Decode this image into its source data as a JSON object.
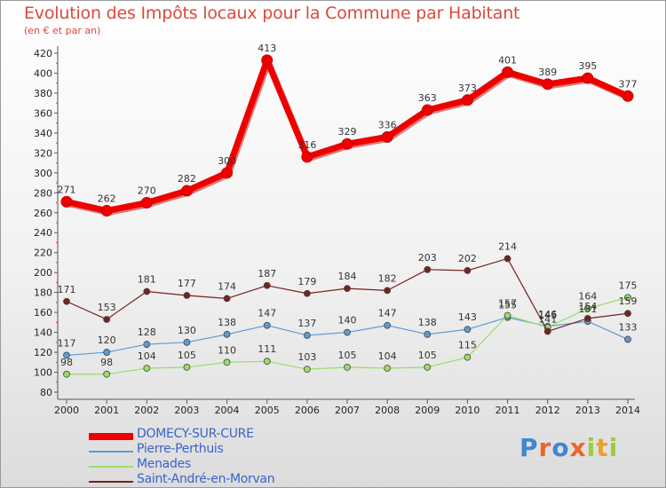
{
  "title": "Evolution des Impôts locaux pour la Commune par Habitant",
  "subtitle": "(en € et par an)",
  "logo_text": "Proxiti",
  "chart_data": {
    "type": "line",
    "title": "Evolution des Impôts locaux pour la Commune par Habitant",
    "subtitle": "(en € et par an)",
    "x": [
      "2000",
      "2001",
      "2002",
      "2003",
      "2004",
      "2005",
      "2006",
      "2007",
      "2008",
      "2009",
      "2010",
      "2011",
      "2012",
      "2013",
      "2014"
    ],
    "y_ticks": [
      "80",
      "100",
      "120",
      "140",
      "160",
      "180",
      "200",
      "220",
      "240",
      "260",
      "280",
      "300",
      "320",
      "340",
      "360",
      "380",
      "400",
      "420"
    ],
    "ylim": [
      80,
      420
    ],
    "grid": false,
    "legend_position": "bottom-left",
    "series": [
      {
        "name": "DOMECY-SUR-CURE",
        "color": "#ee0000",
        "style": "thick",
        "values": [
          271,
          262,
          270,
          282,
          300,
          413,
          316,
          329,
          336,
          363,
          373,
          401,
          389,
          395,
          377
        ],
        "labels": [
          "271",
          "262",
          "270",
          "282",
          "300",
          "413",
          "316",
          "329",
          "336",
          "363",
          "373",
          "401",
          "389",
          "395",
          "377"
        ]
      },
      {
        "name": "Pierre-Perthuis",
        "color": "#5b9bd5",
        "style": "thin",
        "values": [
          117,
          120,
          128,
          130,
          138,
          147,
          137,
          140,
          147,
          138,
          143,
          155,
          146,
          151,
          133
        ],
        "labels": [
          "117",
          "120",
          "128",
          "130",
          "138",
          "147",
          "137",
          "140",
          "147",
          "138",
          "143",
          "155",
          "146",
          "151",
          "133"
        ]
      },
      {
        "name": "Menades",
        "color": "#99dd66",
        "style": "thin",
        "values": [
          98,
          98,
          104,
          105,
          110,
          111,
          103,
          105,
          104,
          105,
          115,
          157,
          145,
          164,
          175
        ],
        "labels": [
          "98",
          "98",
          "104",
          "105",
          "110",
          "111",
          "103",
          "105",
          "104",
          "105",
          "115",
          "157",
          "145",
          "164",
          "175"
        ]
      },
      {
        "name": "Saint-André-en-Morvan",
        "color": "#7a2020",
        "style": "thin",
        "values": [
          171,
          153,
          181,
          177,
          174,
          187,
          179,
          184,
          182,
          203,
          202,
          214,
          141,
          154,
          159
        ],
        "labels": [
          "171",
          "153",
          "181",
          "177",
          "174",
          "187",
          "179",
          "184",
          "182",
          "203",
          "202",
          "214",
          "141",
          "154",
          "159"
        ]
      }
    ]
  }
}
